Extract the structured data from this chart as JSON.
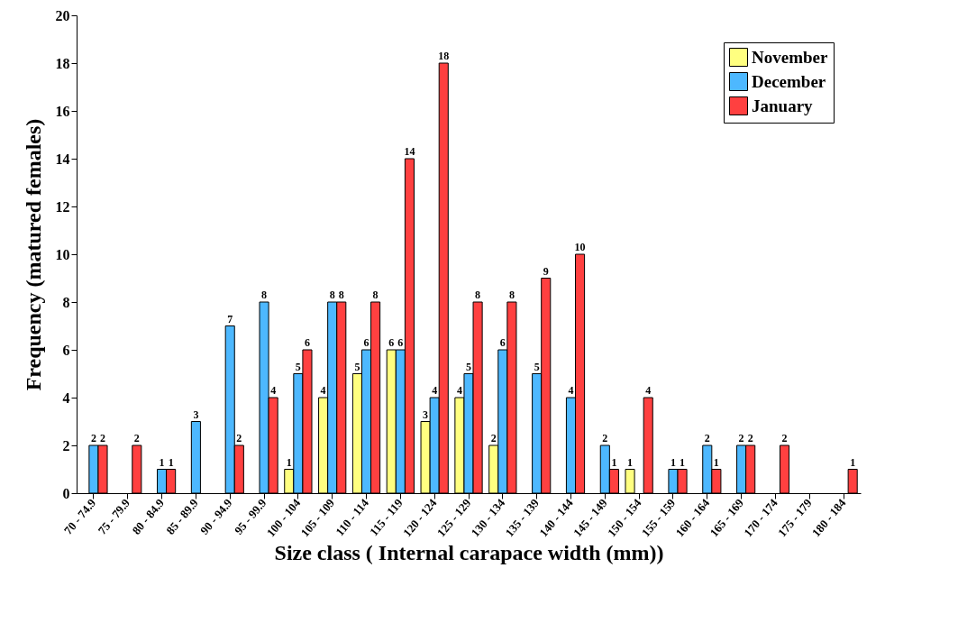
{
  "chart_data": {
    "type": "bar",
    "xlabel": "Size class ( Internal carapace width (mm))",
    "ylabel": "Frequency (matured females)",
    "categories": [
      "70 - 74.9",
      "75 - 79.9",
      "80 - 84.9",
      "85 - 89.9",
      "90 - 94.9",
      "95 - 99.9",
      "100 - 104",
      "105 - 109",
      "110 - 114",
      "115 - 119",
      "120 - 124",
      "125 - 129",
      "130 - 134",
      "135 - 139",
      "140 - 144",
      "145 - 149",
      "150 - 154",
      "155 - 159",
      "160 - 164",
      "165 - 169",
      "170 - 174",
      "175 - 179",
      "180 - 184"
    ],
    "series": [
      {
        "name": "November",
        "color": "#ffff80",
        "values": [
          null,
          null,
          null,
          null,
          null,
          null,
          1,
          4,
          5,
          6,
          3,
          4,
          2,
          null,
          null,
          null,
          1,
          null,
          null,
          null,
          null,
          null,
          null
        ]
      },
      {
        "name": "December",
        "color": "#4db8ff",
        "values": [
          2,
          null,
          1,
          3,
          7,
          8,
          5,
          8,
          6,
          6,
          4,
          5,
          6,
          5,
          4,
          2,
          null,
          1,
          2,
          2,
          null,
          null,
          null
        ]
      },
      {
        "name": "January",
        "color": "#ff4040",
        "values": [
          2,
          2,
          1,
          null,
          2,
          4,
          6,
          8,
          8,
          14,
          18,
          8,
          8,
          9,
          10,
          1,
          4,
          1,
          1,
          2,
          2,
          null,
          1
        ]
      }
    ],
    "ylim": [
      0,
      20
    ],
    "yticks": [
      0,
      2,
      4,
      6,
      8,
      10,
      12,
      14,
      16,
      18,
      20
    ],
    "grid": false,
    "legend": "top right",
    "data_labels": true
  }
}
